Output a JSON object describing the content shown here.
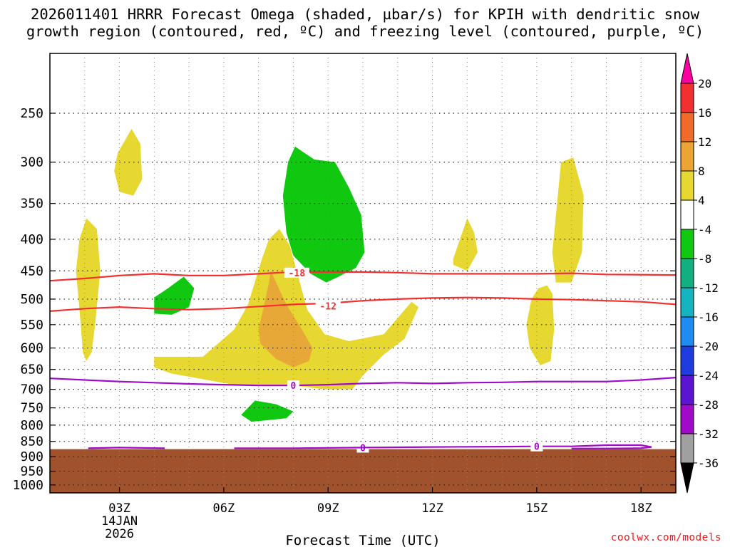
{
  "title": "2026011401 HRRR Forecast Omega (shaded, µbar/s) for KPIH with dendritic snow\ngrowth region (contoured, red, ºC) and freezing level (contoured, purple, ºC)",
  "credit": "coolwx.com/models",
  "chart_data": {
    "type": "contour-timeheight",
    "xlabel": "Forecast Time (UTC)",
    "x_ticks": [
      {
        "hour": 3,
        "label": "03Z",
        "date_line1": "14JAN",
        "date_line2": "2026"
      },
      {
        "hour": 6,
        "label": "06Z"
      },
      {
        "hour": 9,
        "label": "09Z"
      },
      {
        "hour": 12,
        "label": "12Z"
      },
      {
        "hour": 15,
        "label": "15Z"
      },
      {
        "hour": 18,
        "label": "18Z"
      }
    ],
    "xlim": [
      1,
      19
    ],
    "y_ticks": [
      250,
      300,
      350,
      400,
      450,
      500,
      550,
      600,
      650,
      700,
      750,
      800,
      850,
      900,
      950,
      1000
    ],
    "ylim_hPa": [
      200,
      1030
    ],
    "terrain_top_hPa": 875,
    "terrain_color": "#a0522d",
    "colorbar": {
      "ticks": [
        "20",
        "16",
        "12",
        "8",
        "4",
        "-4",
        "-8",
        "-12",
        "-16",
        "-20",
        "-24",
        "-28",
        "-32",
        "-36"
      ],
      "colors": [
        "#ff00a0",
        "#f23030",
        "#f06a28",
        "#eaa534",
        "#e6d830",
        "#ffffff",
        "#10c810",
        "#12b080",
        "#16b4c0",
        "#1e8cf0",
        "#1e3ce0",
        "#5a14d2",
        "#a00ac8",
        "#a0a0a0",
        "#000000"
      ]
    },
    "omega_regions": [
      {
        "category": "4",
        "color": "#e6d830",
        "points": [
          [
            2.95,
            290
          ],
          [
            3.35,
            265
          ],
          [
            3.6,
            280
          ],
          [
            3.65,
            320
          ],
          [
            3.4,
            340
          ],
          [
            3.0,
            335
          ],
          [
            2.85,
            310
          ]
        ]
      },
      {
        "category": "4",
        "color": "#e6d830",
        "points": [
          [
            2.05,
            370
          ],
          [
            2.35,
            385
          ],
          [
            2.45,
            450
          ],
          [
            2.3,
            550
          ],
          [
            2.2,
            610
          ],
          [
            2.05,
            630
          ],
          [
            1.95,
            610
          ],
          [
            1.85,
            520
          ],
          [
            1.75,
            450
          ],
          [
            1.85,
            400
          ]
        ]
      },
      {
        "category": "4",
        "color": "#e6d830",
        "points": [
          [
            7.6,
            385
          ],
          [
            7.9,
            410
          ],
          [
            8.4,
            520
          ],
          [
            8.9,
            570
          ],
          [
            9.6,
            585
          ],
          [
            10.6,
            570
          ],
          [
            11.4,
            505
          ],
          [
            11.6,
            515
          ],
          [
            11.2,
            580
          ],
          [
            10.6,
            615
          ],
          [
            10.0,
            665
          ],
          [
            9.7,
            700
          ],
          [
            8.9,
            700
          ],
          [
            8.0,
            690
          ],
          [
            6.4,
            690
          ],
          [
            4.5,
            660
          ],
          [
            4.0,
            645
          ],
          [
            4.0,
            620
          ],
          [
            5.4,
            620
          ],
          [
            6.3,
            560
          ],
          [
            6.7,
            510
          ],
          [
            7.1,
            430
          ],
          [
            7.3,
            400
          ]
        ]
      },
      {
        "category": "8",
        "color": "#e8a838",
        "points": [
          [
            7.35,
            450
          ],
          [
            7.8,
            510
          ],
          [
            8.25,
            560
          ],
          [
            8.55,
            600
          ],
          [
            8.45,
            630
          ],
          [
            8.0,
            645
          ],
          [
            7.5,
            625
          ],
          [
            7.05,
            590
          ],
          [
            7.0,
            560
          ],
          [
            7.2,
            500
          ],
          [
            7.3,
            470
          ]
        ]
      },
      {
        "category": "4",
        "color": "#e6d830",
        "points": [
          [
            12.6,
            430
          ],
          [
            13.0,
            370
          ],
          [
            13.2,
            390
          ],
          [
            13.3,
            420
          ],
          [
            13.0,
            450
          ],
          [
            12.6,
            440
          ]
        ]
      },
      {
        "category": "4",
        "color": "#e6d830",
        "points": [
          [
            15.7,
            300
          ],
          [
            16.05,
            295
          ],
          [
            16.35,
            340
          ],
          [
            16.3,
            420
          ],
          [
            16.0,
            470
          ],
          [
            15.55,
            470
          ],
          [
            15.45,
            420
          ]
        ]
      },
      {
        "category": "4",
        "color": "#e6d830",
        "points": [
          [
            15.05,
            480
          ],
          [
            15.3,
            475
          ],
          [
            15.45,
            490
          ],
          [
            15.5,
            560
          ],
          [
            15.4,
            630
          ],
          [
            15.1,
            640
          ],
          [
            14.8,
            600
          ],
          [
            14.7,
            550
          ],
          [
            14.85,
            500
          ]
        ]
      },
      {
        "category": "-4",
        "color": "#10c810",
        "points": [
          [
            7.85,
            300
          ],
          [
            8.05,
            283
          ],
          [
            8.6,
            297
          ],
          [
            9.2,
            300
          ],
          [
            9.6,
            330
          ],
          [
            9.95,
            365
          ],
          [
            10.05,
            420
          ],
          [
            9.8,
            445
          ],
          [
            9.3,
            460
          ],
          [
            8.95,
            470
          ],
          [
            8.5,
            455
          ],
          [
            8.0,
            425
          ],
          [
            7.8,
            390
          ],
          [
            7.7,
            340
          ]
        ]
      },
      {
        "category": "-4",
        "color": "#10c810",
        "points": [
          [
            4.0,
            497
          ],
          [
            4.4,
            480
          ],
          [
            4.85,
            460
          ],
          [
            5.15,
            480
          ],
          [
            5.0,
            515
          ],
          [
            4.5,
            530
          ],
          [
            4.0,
            528
          ]
        ]
      },
      {
        "category": "-4",
        "color": "#10c810",
        "points": [
          [
            6.5,
            770
          ],
          [
            6.9,
            730
          ],
          [
            7.5,
            740
          ],
          [
            8.0,
            760
          ],
          [
            7.8,
            780
          ],
          [
            7.3,
            785
          ],
          [
            6.8,
            790
          ]
        ]
      }
    ],
    "contours": [
      {
        "color": "#f23030",
        "label": "-18",
        "label_at": [
          8.1,
          453
        ],
        "points": [
          [
            1,
            467
          ],
          [
            2,
            463
          ],
          [
            3,
            458
          ],
          [
            4,
            455
          ],
          [
            5,
            458
          ],
          [
            6,
            458
          ],
          [
            7,
            455
          ],
          [
            8,
            452
          ],
          [
            9,
            452
          ],
          [
            10,
            452
          ],
          [
            11,
            453
          ],
          [
            12,
            455
          ],
          [
            13,
            455
          ],
          [
            14,
            455
          ],
          [
            15,
            455
          ],
          [
            16,
            454
          ],
          [
            17,
            456
          ],
          [
            19,
            457
          ]
        ]
      },
      {
        "color": "#f23030",
        "label": "-12",
        "label_at": [
          9.0,
          513
        ],
        "points": [
          [
            1,
            523
          ],
          [
            2,
            518
          ],
          [
            3,
            515
          ],
          [
            4,
            518
          ],
          [
            5,
            520
          ],
          [
            6,
            518
          ],
          [
            7,
            514
          ],
          [
            8,
            510
          ],
          [
            9,
            508
          ],
          [
            10,
            503
          ],
          [
            11,
            500
          ],
          [
            12,
            498
          ],
          [
            13,
            497
          ],
          [
            14,
            498
          ],
          [
            15,
            500
          ],
          [
            16,
            501
          ],
          [
            17,
            503
          ],
          [
            18,
            505
          ],
          [
            19,
            510
          ]
        ]
      },
      {
        "color": "#a00ac8",
        "label": "0",
        "label_at": [
          8.0,
          690
        ],
        "points": [
          [
            1,
            672
          ],
          [
            2,
            676
          ],
          [
            3,
            680
          ],
          [
            4,
            683
          ],
          [
            5,
            686
          ],
          [
            6,
            688
          ],
          [
            7,
            690
          ],
          [
            8,
            690
          ],
          [
            9,
            688
          ],
          [
            10,
            685
          ],
          [
            11,
            683
          ],
          [
            12,
            685
          ],
          [
            13,
            683
          ],
          [
            14,
            682
          ],
          [
            15,
            680
          ],
          [
            16,
            680
          ],
          [
            17,
            680
          ],
          [
            18,
            676
          ],
          [
            19,
            670
          ]
        ]
      },
      {
        "color": "#a00ac8",
        "label": "0",
        "label_at": [
          10.0,
          870
        ],
        "points": [
          [
            2.1,
            872
          ],
          [
            3,
            870
          ],
          [
            4.3,
            872
          ]
        ]
      },
      {
        "color": "#a00ac8",
        "label": "0",
        "label_at": [
          15.0,
          866
        ],
        "points": [
          [
            6.3,
            872
          ],
          [
            8,
            872
          ],
          [
            10,
            870
          ],
          [
            12,
            868
          ],
          [
            14,
            867
          ],
          [
            15,
            866
          ],
          [
            16,
            866
          ],
          [
            17,
            862
          ],
          [
            18,
            862
          ],
          [
            18.3,
            868
          ],
          [
            18,
            872
          ],
          [
            17,
            873
          ],
          [
            16,
            873
          ]
        ]
      }
    ]
  }
}
